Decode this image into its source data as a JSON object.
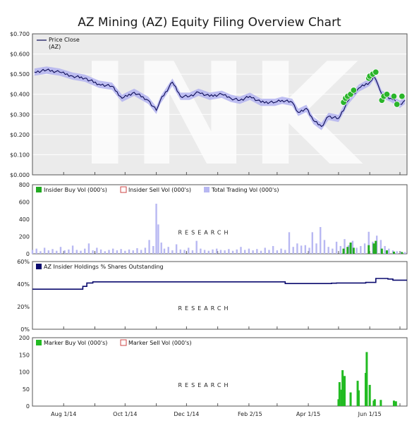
{
  "title": "AZ Mining (AZ) Equity Filing Overview Chart",
  "watermark": {
    "text": "INK",
    "subtext": "RESEARCH"
  },
  "colors": {
    "price_bg": "#ebebeb",
    "price_line": "#0a0a55",
    "price_band": "#b3b3f0",
    "insider_buy": "#22aa22",
    "insider_sell": "#cc4444",
    "trading_vol": "#b8b8f2",
    "holdings": "#0a0a6e",
    "marker_buy": "#22bb22",
    "marker_sell": "#cc4444",
    "dot_fill": "#2bb52b"
  },
  "x_axis": {
    "tick_labels": [
      "Aug 1/14",
      "Oct 1/14",
      "Dec 1/14",
      "Feb 2/15",
      "Apr 1/15",
      "Jun 1/15"
    ]
  },
  "chart_data": [
    {
      "type": "line",
      "name": "price",
      "legend": [
        "Price Close",
        "(AZ)"
      ],
      "yticks": [
        "$0.700",
        "$0.600",
        "$0.500",
        "$0.400",
        "$0.300",
        "$0.200",
        "$0.100",
        "$0.000"
      ],
      "ylim": [
        0,
        0.7
      ],
      "x": [
        "2014-07-03",
        "2014-07-15",
        "2014-07-28",
        "2014-08-10",
        "2014-08-22",
        "2014-09-05",
        "2014-09-18",
        "2014-09-28",
        "2014-10-10",
        "2014-10-24",
        "2014-11-01",
        "2014-11-05",
        "2014-11-17",
        "2014-11-25",
        "2014-12-04",
        "2014-12-13",
        "2014-12-24",
        "2015-01-05",
        "2015-01-14",
        "2015-01-23",
        "2015-02-02",
        "2015-02-13",
        "2015-02-27",
        "2015-03-06",
        "2015-03-16",
        "2015-03-22",
        "2015-03-30",
        "2015-04-06",
        "2015-04-14",
        "2015-04-21",
        "2015-05-01",
        "2015-05-11",
        "2015-05-21",
        "2015-06-01",
        "2015-06-05",
        "2015-06-09",
        "2015-06-13",
        "2015-06-22",
        "2015-07-01",
        "2015-07-06"
      ],
      "y": [
        0.51,
        0.52,
        0.51,
        0.49,
        0.48,
        0.45,
        0.44,
        0.38,
        0.41,
        0.37,
        0.32,
        0.37,
        0.46,
        0.39,
        0.39,
        0.41,
        0.39,
        0.4,
        0.38,
        0.37,
        0.39,
        0.36,
        0.36,
        0.37,
        0.36,
        0.31,
        0.33,
        0.27,
        0.24,
        0.29,
        0.28,
        0.37,
        0.43,
        0.46,
        0.49,
        0.45,
        0.4,
        0.38,
        0.35,
        0.37
      ],
      "band_width": 0.018,
      "filing_markers": [
        {
          "date": "2015-05-06",
          "value": 0.36
        },
        {
          "date": "2015-05-08",
          "value": 0.38
        },
        {
          "date": "2015-05-10",
          "value": 0.39
        },
        {
          "date": "2015-05-13",
          "value": 0.4
        },
        {
          "date": "2015-05-16",
          "value": 0.42
        },
        {
          "date": "2015-05-31",
          "value": 0.48
        },
        {
          "date": "2015-06-01",
          "value": 0.49
        },
        {
          "date": "2015-06-04",
          "value": 0.5
        },
        {
          "date": "2015-06-07",
          "value": 0.51
        },
        {
          "date": "2015-06-13",
          "value": 0.37
        },
        {
          "date": "2015-06-15",
          "value": 0.39
        },
        {
          "date": "2015-06-18",
          "value": 0.4
        },
        {
          "date": "2015-06-25",
          "value": 0.39
        },
        {
          "date": "2015-06-28",
          "value": 0.35
        },
        {
          "date": "2015-07-03",
          "value": 0.39
        }
      ]
    },
    {
      "type": "bar",
      "name": "volume",
      "legend": [
        "Insider Buy Vol (000's)",
        "Insider Sell Vol (000's)",
        "Total Trading Vol (000's)"
      ],
      "yticks": [
        "800",
        "600",
        "400",
        "200",
        "0"
      ],
      "ylim": [
        0,
        800
      ],
      "total_trading_vol": [
        {
          "date": "2014-07-01",
          "value": 45
        },
        {
          "date": "2014-07-05",
          "value": 60
        },
        {
          "date": "2014-07-09",
          "value": 30
        },
        {
          "date": "2014-07-13",
          "value": 70
        },
        {
          "date": "2014-07-17",
          "value": 40
        },
        {
          "date": "2014-07-21",
          "value": 55
        },
        {
          "date": "2014-07-25",
          "value": 35
        },
        {
          "date": "2014-07-29",
          "value": 80
        },
        {
          "date": "2014-08-02",
          "value": 40
        },
        {
          "date": "2014-08-06",
          "value": 50
        },
        {
          "date": "2014-08-10",
          "value": 95
        },
        {
          "date": "2014-08-14",
          "value": 45
        },
        {
          "date": "2014-08-18",
          "value": 35
        },
        {
          "date": "2014-08-22",
          "value": 60
        },
        {
          "date": "2014-08-26",
          "value": 120
        },
        {
          "date": "2014-08-30",
          "value": 40
        },
        {
          "date": "2014-09-03",
          "value": 70
        },
        {
          "date": "2014-09-07",
          "value": 50
        },
        {
          "date": "2014-09-11",
          "value": 30
        },
        {
          "date": "2014-09-15",
          "value": 45
        },
        {
          "date": "2014-09-19",
          "value": 60
        },
        {
          "date": "2014-09-23",
          "value": 40
        },
        {
          "date": "2014-09-27",
          "value": 55
        },
        {
          "date": "2014-10-01",
          "value": 35
        },
        {
          "date": "2014-10-05",
          "value": 50
        },
        {
          "date": "2014-10-09",
          "value": 40
        },
        {
          "date": "2014-10-13",
          "value": 65
        },
        {
          "date": "2014-10-17",
          "value": 45
        },
        {
          "date": "2014-10-21",
          "value": 70
        },
        {
          "date": "2014-10-25",
          "value": 160
        },
        {
          "date": "2014-10-29",
          "value": 90
        },
        {
          "date": "2014-11-01",
          "value": 580
        },
        {
          "date": "2014-11-03",
          "value": 340
        },
        {
          "date": "2014-11-06",
          "value": 130
        },
        {
          "date": "2014-11-09",
          "value": 60
        },
        {
          "date": "2014-11-13",
          "value": 80
        },
        {
          "date": "2014-11-17",
          "value": 40
        },
        {
          "date": "2014-11-21",
          "value": 110
        },
        {
          "date": "2014-11-25",
          "value": 50
        },
        {
          "date": "2014-11-29",
          "value": 45
        },
        {
          "date": "2014-12-03",
          "value": 70
        },
        {
          "date": "2014-12-07",
          "value": 40
        },
        {
          "date": "2014-12-11",
          "value": 150
        },
        {
          "date": "2014-12-15",
          "value": 60
        },
        {
          "date": "2014-12-19",
          "value": 45
        },
        {
          "date": "2014-12-23",
          "value": 35
        },
        {
          "date": "2014-12-27",
          "value": 50
        },
        {
          "date": "2014-12-31",
          "value": 60
        },
        {
          "date": "2015-01-04",
          "value": 45
        },
        {
          "date": "2015-01-08",
          "value": 40
        },
        {
          "date": "2015-01-12",
          "value": 55
        },
        {
          "date": "2015-01-16",
          "value": 35
        },
        {
          "date": "2015-01-20",
          "value": 50
        },
        {
          "date": "2015-01-24",
          "value": 80
        },
        {
          "date": "2015-01-28",
          "value": 45
        },
        {
          "date": "2015-02-01",
          "value": 60
        },
        {
          "date": "2015-02-05",
          "value": 40
        },
        {
          "date": "2015-02-09",
          "value": 55
        },
        {
          "date": "2015-02-13",
          "value": 35
        },
        {
          "date": "2015-02-17",
          "value": 70
        },
        {
          "date": "2015-02-21",
          "value": 45
        },
        {
          "date": "2015-02-25",
          "value": 90
        },
        {
          "date": "2015-03-01",
          "value": 40
        },
        {
          "date": "2015-03-05",
          "value": 60
        },
        {
          "date": "2015-03-09",
          "value": 45
        },
        {
          "date": "2015-03-13",
          "value": 250
        },
        {
          "date": "2015-03-17",
          "value": 80
        },
        {
          "date": "2015-03-21",
          "value": 120
        },
        {
          "date": "2015-03-25",
          "value": 95
        },
        {
          "date": "2015-03-29",
          "value": 100
        },
        {
          "date": "2015-04-02",
          "value": 70
        },
        {
          "date": "2015-04-05",
          "value": 250
        },
        {
          "date": "2015-04-09",
          "value": 120
        },
        {
          "date": "2015-04-13",
          "value": 310
        },
        {
          "date": "2015-04-17",
          "value": 160
        },
        {
          "date": "2015-04-21",
          "value": 80
        },
        {
          "date": "2015-04-25",
          "value": 60
        },
        {
          "date": "2015-04-29",
          "value": 140
        },
        {
          "date": "2015-05-03",
          "value": 90
        },
        {
          "date": "2015-05-07",
          "value": 170
        },
        {
          "date": "2015-05-11",
          "value": 100
        },
        {
          "date": "2015-05-15",
          "value": 150
        },
        {
          "date": "2015-05-19",
          "value": 70
        },
        {
          "date": "2015-05-23",
          "value": 90
        },
        {
          "date": "2015-05-27",
          "value": 120
        },
        {
          "date": "2015-05-31",
          "value": 255
        },
        {
          "date": "2015-06-04",
          "value": 140
        },
        {
          "date": "2015-06-08",
          "value": 210
        },
        {
          "date": "2015-06-12",
          "value": 160
        },
        {
          "date": "2015-06-16",
          "value": 90
        },
        {
          "date": "2015-06-20",
          "value": 60
        },
        {
          "date": "2015-06-24",
          "value": 40
        },
        {
          "date": "2015-06-28",
          "value": 30
        },
        {
          "date": "2015-07-02",
          "value": 25
        },
        {
          "date": "2015-07-06",
          "value": 20
        }
      ],
      "insider_buy_vol": [
        {
          "date": "2015-05-06",
          "value": 60
        },
        {
          "date": "2015-05-10",
          "value": 80
        },
        {
          "date": "2015-05-13",
          "value": 130
        },
        {
          "date": "2015-05-16",
          "value": 70
        },
        {
          "date": "2015-05-31",
          "value": 100
        },
        {
          "date": "2015-06-05",
          "value": 120
        },
        {
          "date": "2015-06-07",
          "value": 150
        },
        {
          "date": "2015-06-13",
          "value": 60
        },
        {
          "date": "2015-06-18",
          "value": 40
        },
        {
          "date": "2015-06-25",
          "value": 25
        },
        {
          "date": "2015-07-03",
          "value": 20
        }
      ],
      "insider_sell_vol": []
    },
    {
      "type": "line",
      "name": "holdings",
      "legend": [
        "AZ Insider Holdings % Shares Outstanding"
      ],
      "yticks": [
        "60%",
        "40%",
        "20%",
        "0%"
      ],
      "ylim": [
        0,
        60
      ],
      "steps": [
        {
          "date": "2014-07-01",
          "value": 35.5
        },
        {
          "date": "2014-08-20",
          "value": 38
        },
        {
          "date": "2014-08-24",
          "value": 41
        },
        {
          "date": "2014-08-30",
          "value": 42
        },
        {
          "date": "2015-03-09",
          "value": 40.5
        },
        {
          "date": "2015-04-24",
          "value": 40.8
        },
        {
          "date": "2015-04-29",
          "value": 41
        },
        {
          "date": "2015-05-28",
          "value": 41.5
        },
        {
          "date": "2015-06-07",
          "value": 45
        },
        {
          "date": "2015-06-19",
          "value": 44.5
        },
        {
          "date": "2015-06-24",
          "value": 43.5
        }
      ]
    },
    {
      "type": "bar",
      "name": "marker",
      "legend": [
        "Marker Buy Vol (000's)",
        "Marker Sell Vol (000's)"
      ],
      "yticks": [
        "200",
        "150",
        "100",
        "50",
        "0"
      ],
      "ylim": [
        0,
        200
      ],
      "marker_buy_vol": [
        {
          "date": "2015-05-01",
          "value": 20
        },
        {
          "date": "2015-05-02",
          "value": 70
        },
        {
          "date": "2015-05-04",
          "value": 48
        },
        {
          "date": "2015-05-05",
          "value": 105
        },
        {
          "date": "2015-05-07",
          "value": 88
        },
        {
          "date": "2015-05-13",
          "value": 40
        },
        {
          "date": "2015-05-20",
          "value": 74
        },
        {
          "date": "2015-05-21",
          "value": 46
        },
        {
          "date": "2015-05-28",
          "value": 97
        },
        {
          "date": "2015-05-29",
          "value": 158
        },
        {
          "date": "2015-06-01",
          "value": 62
        },
        {
          "date": "2015-06-05",
          "value": 16
        },
        {
          "date": "2015-06-06",
          "value": 20
        },
        {
          "date": "2015-06-12",
          "value": 18
        },
        {
          "date": "2015-06-25",
          "value": 16
        },
        {
          "date": "2015-06-27",
          "value": 14
        }
      ],
      "marker_sell_vol": []
    }
  ]
}
